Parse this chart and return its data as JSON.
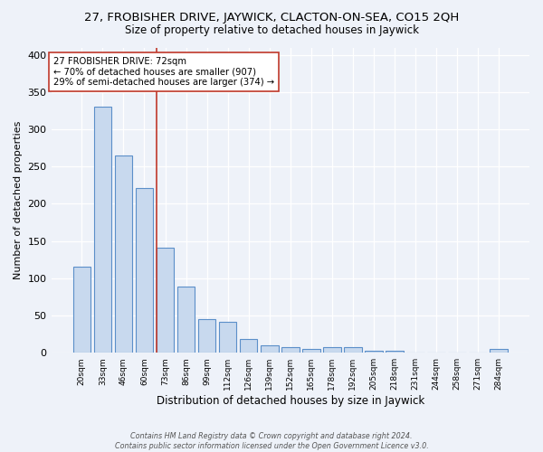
{
  "title": "27, FROBISHER DRIVE, JAYWICK, CLACTON-ON-SEA, CO15 2QH",
  "subtitle": "Size of property relative to detached houses in Jaywick",
  "xlabel": "Distribution of detached houses by size in Jaywick",
  "ylabel": "Number of detached properties",
  "categories": [
    "20sqm",
    "33sqm",
    "46sqm",
    "60sqm",
    "73sqm",
    "86sqm",
    "99sqm",
    "112sqm",
    "126sqm",
    "139sqm",
    "152sqm",
    "165sqm",
    "178sqm",
    "192sqm",
    "205sqm",
    "218sqm",
    "231sqm",
    "244sqm",
    "258sqm",
    "271sqm",
    "284sqm"
  ],
  "values": [
    116,
    330,
    265,
    221,
    141,
    89,
    45,
    42,
    19,
    10,
    7,
    5,
    8,
    8,
    3,
    3,
    0,
    0,
    0,
    0,
    5
  ],
  "bar_color": "#c8d9ee",
  "bar_edge_color": "#5b8fc9",
  "vline_color": "#c0392b",
  "annotation_text": "27 FROBISHER DRIVE: 72sqm\n← 70% of detached houses are smaller (907)\n29% of semi-detached houses are larger (374) →",
  "annotation_box_color": "white",
  "annotation_box_edge_color": "#c0392b",
  "footer": "Contains HM Land Registry data © Crown copyright and database right 2024.\nContains public sector information licensed under the Open Government Licence v3.0.",
  "background_color": "#eef2f9",
  "title_fontsize": 9.5,
  "subtitle_fontsize": 8.5,
  "ylim": [
    0,
    410
  ],
  "yticks": [
    0,
    50,
    100,
    150,
    200,
    250,
    300,
    350,
    400
  ]
}
